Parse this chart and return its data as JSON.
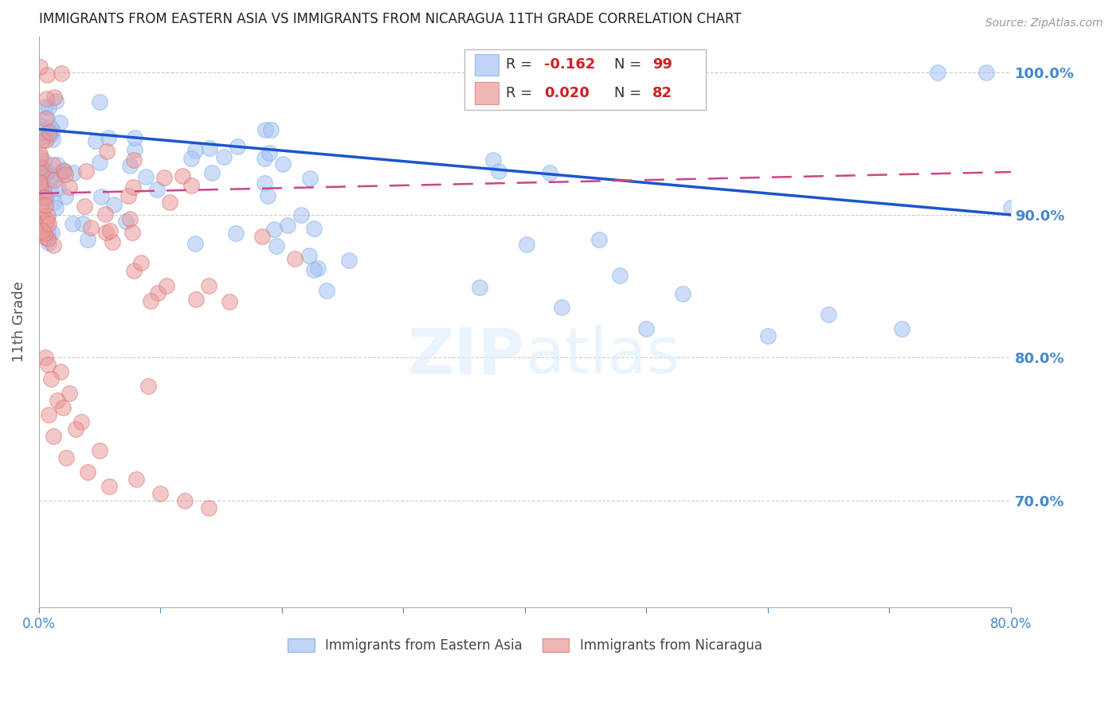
{
  "title": "IMMIGRANTS FROM EASTERN ASIA VS IMMIGRANTS FROM NICARAGUA 11TH GRADE CORRELATION CHART",
  "source": "Source: ZipAtlas.com",
  "xlabel_bottom": "Immigrants from Eastern Asia",
  "xlabel_bottom2": "Immigrants from Nicaragua",
  "ylabel": "11th Grade",
  "r_blue": -0.162,
  "n_blue": 99,
  "r_pink": 0.02,
  "n_pink": 82,
  "xmin": 0.0,
  "xmax": 0.8,
  "ymin": 0.625,
  "ymax": 1.025,
  "yticks": [
    0.7,
    0.8,
    0.9,
    1.0
  ],
  "ytick_labels": [
    "70.0%",
    "80.0%",
    "90.0%",
    "100.0%"
  ],
  "blue_color": "#a4c2f4",
  "pink_color": "#ea9999",
  "trend_blue_color": "#1a56cc",
  "trend_pink_color": "#cc4488",
  "background_color": "#ffffff",
  "grid_color": "#cccccc",
  "axis_color": "#aaaaaa",
  "right_label_color": "#4488cc",
  "title_color": "#222222",
  "blue_trend_x0": 0.0,
  "blue_trend_y0": 0.96,
  "blue_trend_x1": 0.8,
  "blue_trend_y1": 0.9,
  "pink_trend_x0": 0.0,
  "pink_trend_y0": 0.915,
  "pink_trend_x1": 0.8,
  "pink_trend_y1": 0.93
}
